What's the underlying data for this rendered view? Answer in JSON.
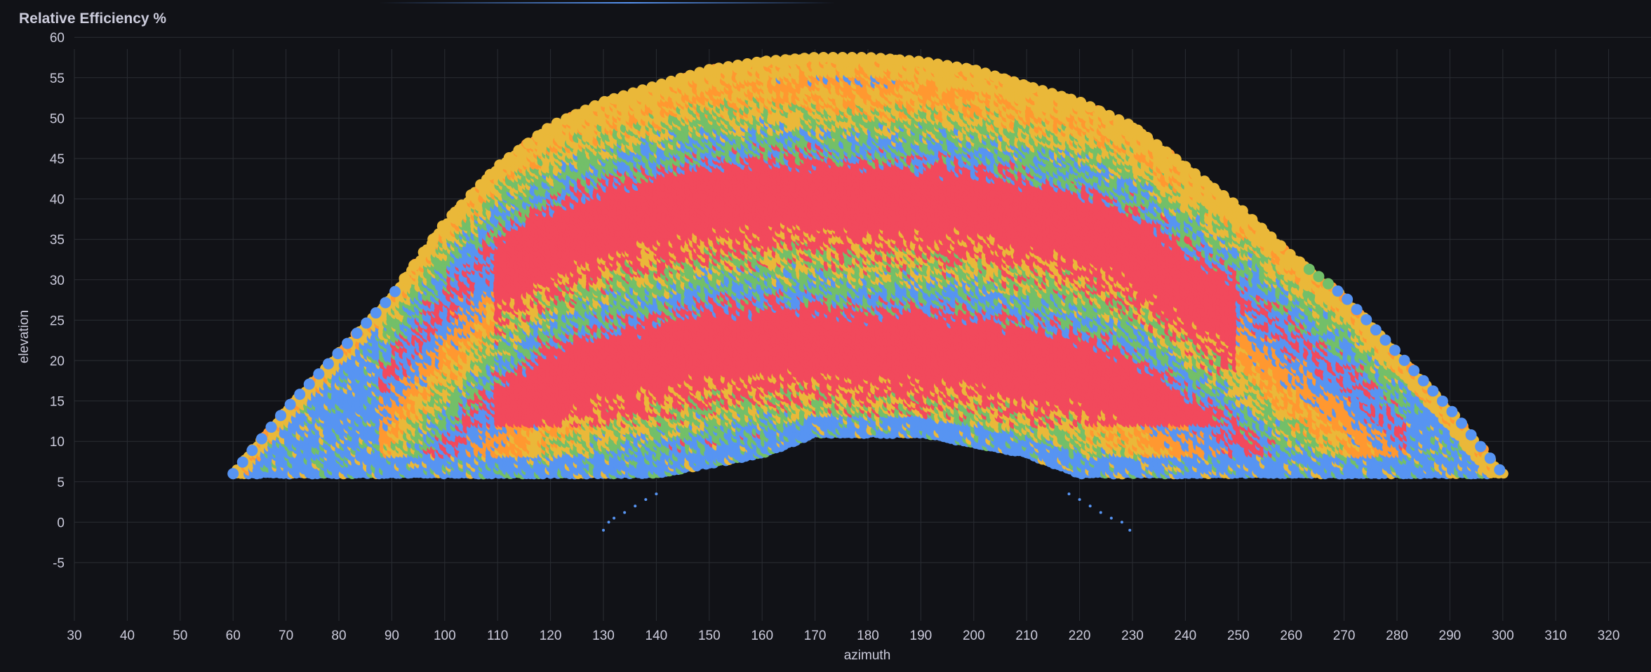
{
  "panel": {
    "title": "Relative Efficiency %"
  },
  "colors": {
    "background": "#111217",
    "grid": "#2a2d33",
    "text": "#ccccdc",
    "blue": "#5794f2",
    "green": "#73bf69",
    "yellow": "#eab839",
    "orange": "#ff9830",
    "red": "#f2495c"
  },
  "chart_data": {
    "type": "scatter",
    "title": "Relative Efficiency %",
    "xlabel": "azimuth",
    "ylabel": "elevation",
    "xlim": [
      30,
      330
    ],
    "ylim": [
      -8,
      63
    ],
    "x_ticks": [
      30,
      40,
      50,
      60,
      70,
      80,
      90,
      100,
      110,
      120,
      130,
      140,
      150,
      160,
      170,
      180,
      190,
      200,
      210,
      220,
      230,
      240,
      250,
      260,
      270,
      280,
      290,
      300,
      310,
      320
    ],
    "y_ticks": [
      -5,
      0,
      5,
      10,
      15,
      20,
      25,
      30,
      35,
      40,
      45,
      50,
      55,
      60
    ],
    "grid": true,
    "legend": "none",
    "point_color_bands": [
      "blue",
      "green",
      "yellow",
      "orange",
      "red"
    ],
    "envelope": {
      "description_points": [
        [
          60,
          6
        ],
        [
          70,
          14
        ],
        [
          80,
          21
        ],
        [
          90,
          28
        ],
        [
          100,
          37
        ],
        [
          110,
          44
        ],
        [
          120,
          49
        ],
        [
          130,
          52
        ],
        [
          140,
          54
        ],
        [
          150,
          56
        ],
        [
          160,
          57
        ],
        [
          170,
          57.5
        ],
        [
          180,
          57.5
        ],
        [
          190,
          57
        ],
        [
          200,
          56
        ],
        [
          210,
          54
        ],
        [
          220,
          52
        ],
        [
          230,
          49
        ],
        [
          240,
          44
        ],
        [
          250,
          39
        ],
        [
          260,
          33
        ],
        [
          270,
          28
        ],
        [
          280,
          21
        ],
        [
          290,
          14
        ],
        [
          300,
          6
        ]
      ],
      "lower_plateau": [
        [
          60,
          6
        ],
        [
          140,
          6
        ],
        [
          160,
          8.5
        ],
        [
          170,
          11
        ],
        [
          190,
          11
        ],
        [
          210,
          8.5
        ],
        [
          220,
          6
        ],
        [
          300,
          6
        ]
      ]
    },
    "trace_points": {
      "left": [
        [
          130,
          -1
        ],
        [
          131,
          0
        ],
        [
          132,
          0.5
        ],
        [
          134,
          1.2
        ],
        [
          136,
          2
        ],
        [
          138,
          2.8
        ],
        [
          140,
          3.5
        ]
      ],
      "right": [
        [
          218,
          3.5
        ],
        [
          220,
          2.8
        ],
        [
          222,
          2
        ],
        [
          224,
          1.2
        ],
        [
          226,
          0.5
        ],
        [
          228,
          0
        ],
        [
          229.5,
          -1
        ]
      ]
    }
  }
}
